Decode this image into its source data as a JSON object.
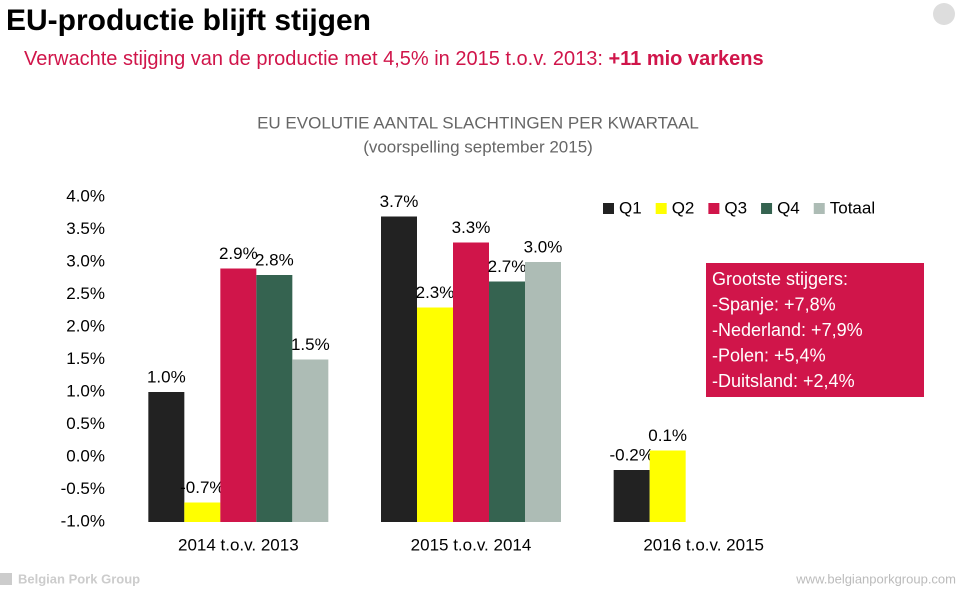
{
  "header": {
    "title": "EU-productie blijft stijgen",
    "subtitle": "Verwachte stijging van de productie met 4,5% in 2015 t.o.v. 2013:",
    "subtitle_highlight": "+11 mio varkens"
  },
  "chart_data": {
    "type": "bar",
    "title": "EU EVOLUTIE AANTAL SLACHTINGEN PER KWARTAAL",
    "subtitle": "(voorspelling september 2015)",
    "categories": [
      "2014 t.o.v. 2013",
      "2015 t.o.v. 2014",
      "2016 t.o.v. 2015"
    ],
    "series": [
      {
        "name": "Q1",
        "color": "#222222",
        "values": [
          1.0,
          3.7,
          -0.2
        ],
        "value_labels": [
          "1.0%",
          "3.7%",
          "-0.2%"
        ]
      },
      {
        "name": "Q2",
        "color": "#ffff00",
        "values": [
          -0.7,
          2.3,
          0.1
        ],
        "value_labels": [
          "-0.7%",
          "2.3%",
          "0.1%"
        ]
      },
      {
        "name": "Q3",
        "color": "#d0154a",
        "values": [
          2.9,
          3.3,
          null
        ],
        "value_labels": [
          "2.9%",
          "3.3%",
          null
        ]
      },
      {
        "name": "Q4",
        "color": "#356350",
        "values": [
          2.8,
          2.7,
          null
        ],
        "value_labels": [
          "2.8%",
          "2.7%",
          null
        ]
      },
      {
        "name": "Totaal",
        "color": "#adbcb5",
        "values": [
          1.5,
          3.0,
          null
        ],
        "value_labels": [
          "1.5%",
          "3.0%",
          null
        ]
      }
    ],
    "ylim": [
      -1.0,
      4.0
    ],
    "yticks": [
      {
        "value": -1.0,
        "label": "-1.0%"
      },
      {
        "value": -0.5,
        "label": "-0.5%"
      },
      {
        "value": 0,
        "label": "0.0%"
      },
      {
        "value": 0.5,
        "label": "0.5%"
      },
      {
        "value": 1.0,
        "label": "1.0%"
      },
      {
        "value": 1.5,
        "label": "1.5%"
      },
      {
        "value": 2.0,
        "label": "2.0%"
      },
      {
        "value": 2.5,
        "label": "2.5%"
      },
      {
        "value": 3.0,
        "label": "3.0%"
      },
      {
        "value": 3.5,
        "label": "3.5%"
      },
      {
        "value": 4.0,
        "label": "4.0%"
      }
    ],
    "grid": false,
    "legend": "top-right",
    "annotation": [
      "Grootste stijgers:",
      "-Spanje: +7,8%",
      "-Nederland: +7,9%",
      "-Polen: +5,4%",
      "-Duitsland: +2,4%"
    ]
  },
  "footer": {
    "brand": "Belgian Pork Group",
    "url": "www.belgianporkgroup.com"
  }
}
